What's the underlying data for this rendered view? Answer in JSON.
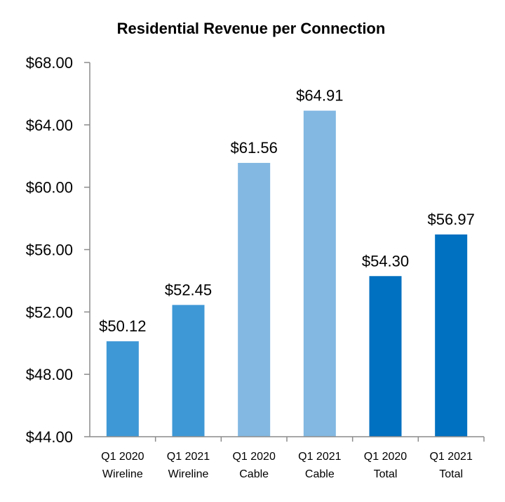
{
  "chart_data": {
    "type": "bar",
    "title": "Residential Revenue per Connection",
    "xlabel": "",
    "ylabel": "",
    "ylim": [
      44,
      68
    ],
    "yticks": [
      44,
      48,
      52,
      56,
      60,
      64,
      68
    ],
    "ytick_labels": [
      "$44.00",
      "$48.00",
      "$52.00",
      "$56.00",
      "$60.00",
      "$64.00",
      "$68.00"
    ],
    "grid": false,
    "legend": "none",
    "categories": [
      [
        "Q1 2020",
        "Wireline"
      ],
      [
        "Q1 2021",
        "Wireline"
      ],
      [
        "Q1 2020",
        "Cable"
      ],
      [
        "Q1 2021",
        "Cable"
      ],
      [
        "Q1 2020",
        "Total"
      ],
      [
        "Q1 2021",
        "Total"
      ]
    ],
    "values": [
      50.12,
      52.45,
      61.56,
      64.91,
      54.3,
      56.97
    ],
    "value_labels": [
      "$50.12",
      "$52.45",
      "$61.56",
      "$64.91",
      "$54.30",
      "$56.97"
    ],
    "colors": [
      "#3f98d6",
      "#3f98d6",
      "#82b8e2",
      "#82b8e2",
      "#0070c0",
      "#0070c0"
    ]
  },
  "colors": {
    "axis": "#8c8c8c",
    "text": "#000000",
    "background": "#ffffff"
  }
}
